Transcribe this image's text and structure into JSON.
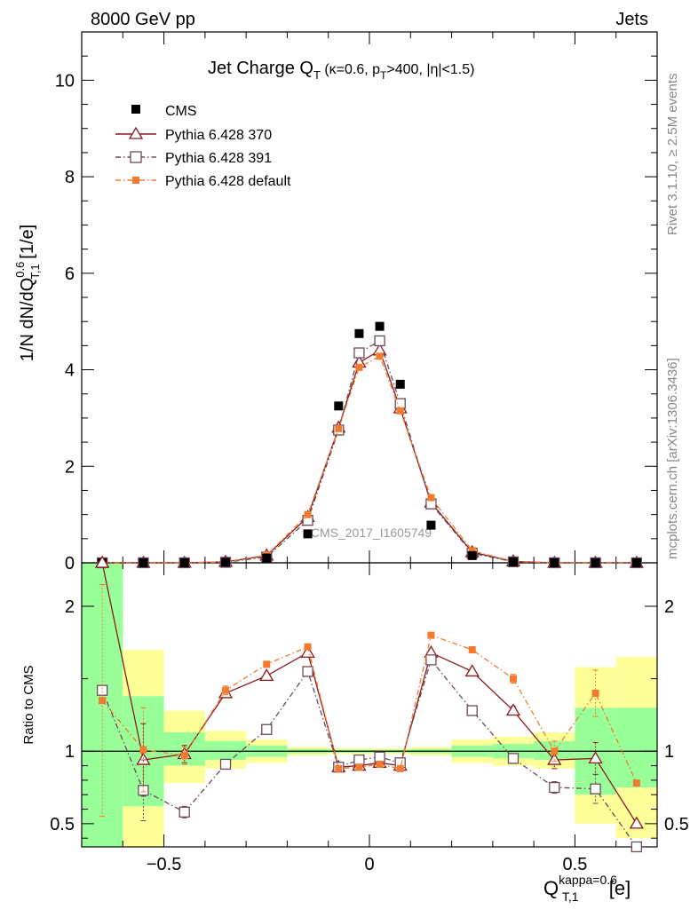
{
  "header": {
    "left": "8000 GeV pp",
    "right": "Jets"
  },
  "side_text": {
    "rivet": "Rivet 3.1.10, ≥ 2.5M events",
    "mcplots": "mcplots.cern.ch [arXiv:1306.3436]"
  },
  "colors": {
    "cms": "#000000",
    "p370": "#8b1a1a",
    "p391": "#6b4a5c",
    "pdefault": "#f47a30",
    "band_inner": "#99ff99",
    "band_outer": "#ffff99"
  },
  "chart_data": [
    {
      "type": "scatter",
      "panel": "main",
      "title": {
        "main": "Jet Charge Q",
        "main_sub": "T",
        "p1": " (κ=0.6, p",
        "p1_sub": "T",
        "p2": ">400, |η|<1.5)"
      },
      "ylabel": {
        "a": "1/N dN/dQ",
        "sup": "0.6",
        "sub": "T,1",
        "b": " [1/e]"
      },
      "watermark": "CMS_2017_I1605749",
      "xlim": [
        -0.7,
        0.7
      ],
      "ylim": [
        0,
        11
      ],
      "y_ticks": [
        "0",
        "2",
        "4",
        "6",
        "8",
        "10"
      ],
      "legend_position": "top-left",
      "series": [
        {
          "name": "CMS",
          "x": [
            -0.65,
            -0.55,
            -0.45,
            -0.35,
            -0.25,
            -0.15,
            -0.075,
            -0.025,
            0.025,
            0.075,
            0.15,
            0.25,
            0.35,
            0.45,
            0.55,
            0.65
          ],
          "y": [
            0.0,
            0.0,
            0.0,
            0.01,
            0.1,
            0.6,
            3.25,
            4.75,
            4.9,
            3.7,
            0.78,
            0.15,
            0.02,
            0.0,
            0.0,
            0.0
          ]
        },
        {
          "name": "Pythia 6.428 370",
          "x": [
            -0.65,
            -0.55,
            -0.45,
            -0.35,
            -0.25,
            -0.15,
            -0.075,
            -0.025,
            0.025,
            0.075,
            0.15,
            0.25,
            0.35,
            0.45,
            0.55,
            0.65
          ],
          "y": [
            0.0,
            0.0,
            0.0,
            0.02,
            0.15,
            0.95,
            2.8,
            4.15,
            4.4,
            3.2,
            1.25,
            0.22,
            0.03,
            0.0,
            0.0,
            0.0
          ]
        },
        {
          "name": "Pythia 6.428 391",
          "x": [
            -0.65,
            -0.55,
            -0.45,
            -0.35,
            -0.25,
            -0.15,
            -0.075,
            -0.025,
            0.025,
            0.075,
            0.15,
            0.25,
            0.35,
            0.45,
            0.55,
            0.65
          ],
          "y": [
            0.0,
            0.0,
            0.0,
            0.01,
            0.12,
            0.88,
            2.75,
            4.35,
            4.6,
            3.3,
            1.22,
            0.2,
            0.02,
            0.0,
            0.0,
            0.0
          ]
        },
        {
          "name": "Pythia 6.428 default",
          "x": [
            -0.65,
            -0.55,
            -0.45,
            -0.35,
            -0.25,
            -0.15,
            -0.075,
            -0.025,
            0.025,
            0.075,
            0.15,
            0.25,
            0.35,
            0.45,
            0.55,
            0.65
          ],
          "y": [
            0.0,
            0.0,
            0.0,
            0.02,
            0.16,
            1.0,
            2.78,
            4.05,
            4.28,
            3.15,
            1.35,
            0.25,
            0.03,
            0.0,
            0.0,
            0.0
          ]
        }
      ]
    },
    {
      "type": "scatter",
      "panel": "ratio",
      "ylabel": "Ratio to CMS",
      "xlabel": {
        "a": "Q",
        "sup": "kappa=0.6",
        "sub": "T,1",
        "b": " [e]"
      },
      "xlim": [
        -0.7,
        0.7
      ],
      "ylim": [
        0.34,
        2.3
      ],
      "y_ticks": [
        "0.5",
        "1",
        "2"
      ],
      "x_ticks": [
        "−0.5",
        "0",
        "0.5"
      ],
      "reference": 1,
      "bands": [
        {
          "x": [
            -0.7,
            -0.6
          ],
          "inner": [
            0.34,
            2.3
          ],
          "outer": [
            0.34,
            2.3
          ]
        },
        {
          "x": [
            -0.6,
            -0.5
          ],
          "inner": [
            0.62,
            1.38
          ],
          "outer": [
            0.34,
            1.7
          ]
        },
        {
          "x": [
            -0.5,
            -0.4
          ],
          "inner": [
            0.9,
            1.13
          ],
          "outer": [
            0.78,
            1.28
          ]
        },
        {
          "x": [
            -0.4,
            -0.3
          ],
          "inner": [
            0.94,
            1.07
          ],
          "outer": [
            0.88,
            1.14
          ]
        },
        {
          "x": [
            -0.3,
            -0.2
          ],
          "inner": [
            0.96,
            1.04
          ],
          "outer": [
            0.92,
            1.08
          ]
        },
        {
          "x": [
            -0.2,
            -0.1
          ],
          "inner": [
            0.985,
            1.015
          ],
          "outer": [
            0.97,
            1.03
          ]
        },
        {
          "x": [
            -0.1,
            0.1
          ],
          "inner": [
            0.99,
            1.01
          ],
          "outer": [
            0.98,
            1.02
          ]
        },
        {
          "x": [
            0.1,
            0.2
          ],
          "inner": [
            0.985,
            1.015
          ],
          "outer": [
            0.97,
            1.03
          ]
        },
        {
          "x": [
            0.2,
            0.3
          ],
          "inner": [
            0.96,
            1.04
          ],
          "outer": [
            0.92,
            1.08
          ]
        },
        {
          "x": [
            0.3,
            0.4
          ],
          "inner": [
            0.95,
            1.05
          ],
          "outer": [
            0.9,
            1.1
          ]
        },
        {
          "x": [
            0.4,
            0.5
          ],
          "inner": [
            0.94,
            1.07
          ],
          "outer": [
            0.88,
            1.13
          ]
        },
        {
          "x": [
            0.5,
            0.6
          ],
          "inner": [
            0.7,
            1.3
          ],
          "outer": [
            0.5,
            1.58
          ]
        },
        {
          "x": [
            0.6,
            0.7
          ],
          "inner": [
            0.75,
            1.3
          ],
          "outer": [
            0.4,
            1.65
          ]
        }
      ],
      "series": [
        {
          "name": "Pythia 6.428 370",
          "x": [
            -0.65,
            -0.55,
            -0.45,
            -0.35,
            -0.25,
            -0.15,
            -0.075,
            -0.025,
            0.025,
            0.075,
            0.15,
            0.25,
            0.35,
            0.45,
            0.55,
            0.65
          ],
          "y": [
            2.3,
            0.94,
            0.98,
            1.4,
            1.52,
            1.68,
            0.89,
            0.9,
            0.92,
            0.9,
            1.68,
            1.55,
            1.28,
            0.94,
            0.95,
            0.5
          ],
          "err": [
            0.0,
            0.25,
            0.06,
            0.03,
            0.02,
            0.01,
            0.01,
            0.01,
            0.01,
            0.01,
            0.01,
            0.02,
            0.03,
            0.06,
            0.11,
            0.0
          ]
        },
        {
          "name": "Pythia 6.428 391",
          "x": [
            -0.65,
            -0.55,
            -0.45,
            -0.35,
            -0.25,
            -0.15,
            -0.075,
            -0.025,
            0.025,
            0.075,
            0.15,
            0.25,
            0.35,
            0.45,
            0.55,
            0.65
          ],
          "y": [
            1.42,
            0.73,
            0.58,
            0.91,
            1.15,
            1.55,
            0.89,
            0.94,
            0.96,
            0.92,
            1.63,
            1.28,
            0.95,
            0.75,
            0.74,
            0.34
          ],
          "err": [
            0.0,
            0.21,
            0.04,
            0.02,
            0.01,
            0.01,
            0.01,
            0.01,
            0.01,
            0.01,
            0.01,
            0.02,
            0.02,
            0.04,
            0.1,
            0.0
          ]
        },
        {
          "name": "Pythia 6.428 default",
          "x": [
            -0.65,
            -0.55,
            -0.45,
            -0.35,
            -0.25,
            -0.15,
            -0.075,
            -0.025,
            0.025,
            0.075,
            0.15,
            0.25,
            0.35,
            0.45,
            0.55,
            0.65
          ],
          "y": [
            1.35,
            1.01,
            0.97,
            1.42,
            1.6,
            1.72,
            0.88,
            0.89,
            0.91,
            0.88,
            1.8,
            1.7,
            1.5,
            1.0,
            1.4,
            0.78
          ],
          "err": [
            0.8,
            0.29,
            0.06,
            0.03,
            0.02,
            0.01,
            0.01,
            0.01,
            0.01,
            0.01,
            0.01,
            0.02,
            0.03,
            0.07,
            0.16,
            0.0
          ]
        }
      ]
    }
  ]
}
